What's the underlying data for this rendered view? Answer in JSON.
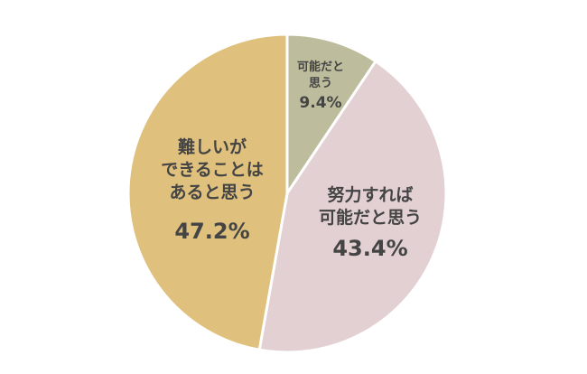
{
  "chart_data": {
    "type": "pie",
    "start": "top",
    "direction": "clockwise",
    "slices": [
      {
        "label_lines": [
          "可能だと",
          "思う"
        ],
        "value_text": "9.4%",
        "value": 9.4,
        "color": "#bdbd9d"
      },
      {
        "label_lines": [
          "努力すれば",
          "可能だと思う"
        ],
        "value_text": "43.4%",
        "value": 43.4,
        "color": "#e3d0d2"
      },
      {
        "label_lines": [
          "難しいが",
          "できることは",
          "あると思う"
        ],
        "value_text": "47.2%",
        "value": 47.2,
        "color": "#dfc07d"
      }
    ]
  }
}
